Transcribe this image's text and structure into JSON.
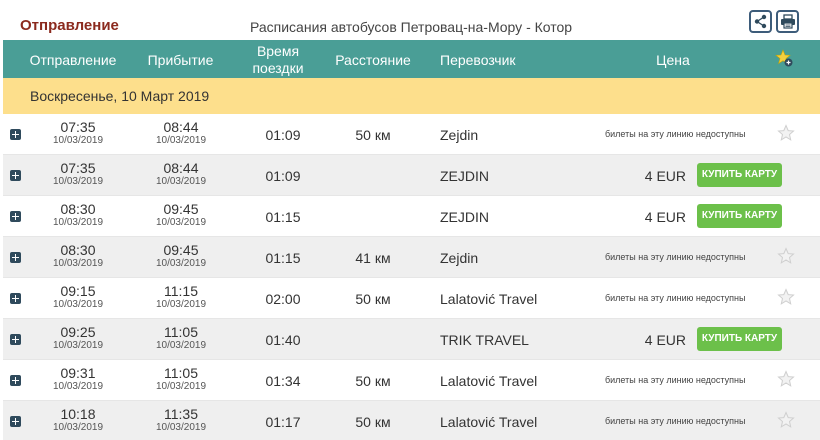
{
  "header": {
    "section_title": "Отправление",
    "route_title": "Расписания автобусов Петровац-на-Мору - Котор",
    "share_icon": "share-icon",
    "print_icon": "print-icon"
  },
  "table": {
    "columns": {
      "departure": "Отправление",
      "arrival": "Прибытие",
      "duration_line1": "Время",
      "duration_line2": "поездки",
      "distance": "Расстояние",
      "carrier": "Перевозчик",
      "price": "Цена",
      "favorite_icon": "star-add-icon"
    },
    "day_label": "Воскресенье, 10 Март 2019",
    "rows": [
      {
        "dep": "07:35",
        "dep_date": "10/03/2019",
        "arr": "08:44",
        "arr_date": "10/03/2019",
        "duration": "01:09",
        "distance": "50 км",
        "carrier": "Zejdin",
        "price": "",
        "status": "билеты на эту линию недоступны",
        "buy": ""
      },
      {
        "dep": "07:35",
        "dep_date": "10/03/2019",
        "arr": "08:44",
        "arr_date": "10/03/2019",
        "duration": "01:09",
        "distance": "",
        "carrier": "ZEJDIN",
        "price": "4 EUR",
        "status": "",
        "buy": "КУПИТЬ КАРТУ"
      },
      {
        "dep": "08:30",
        "dep_date": "10/03/2019",
        "arr": "09:45",
        "arr_date": "10/03/2019",
        "duration": "01:15",
        "distance": "",
        "carrier": "ZEJDIN",
        "price": "4 EUR",
        "status": "",
        "buy": "КУПИТЬ КАРТУ"
      },
      {
        "dep": "08:30",
        "dep_date": "10/03/2019",
        "arr": "09:45",
        "arr_date": "10/03/2019",
        "duration": "01:15",
        "distance": "41 км",
        "carrier": "Zejdin",
        "price": "",
        "status": "билеты на эту линию недоступны",
        "buy": ""
      },
      {
        "dep": "09:15",
        "dep_date": "10/03/2019",
        "arr": "11:15",
        "arr_date": "10/03/2019",
        "duration": "02:00",
        "distance": "50 км",
        "carrier": "Lalatović Travel",
        "price": "",
        "status": "билеты на эту линию недоступны",
        "buy": ""
      },
      {
        "dep": "09:25",
        "dep_date": "10/03/2019",
        "arr": "11:05",
        "arr_date": "10/03/2019",
        "duration": "01:40",
        "distance": "",
        "carrier": "TRIK TRAVEL",
        "price": "4 EUR",
        "status": "",
        "buy": "КУПИТЬ КАРТУ"
      },
      {
        "dep": "09:31",
        "dep_date": "10/03/2019",
        "arr": "11:05",
        "arr_date": "10/03/2019",
        "duration": "01:34",
        "distance": "50 км",
        "carrier": "Lalatović Travel",
        "price": "",
        "status": "билеты на эту линию недоступны",
        "buy": ""
      },
      {
        "dep": "10:18",
        "dep_date": "10/03/2019",
        "arr": "11:35",
        "arr_date": "10/03/2019",
        "duration": "01:17",
        "distance": "50 км",
        "carrier": "Lalatović Travel",
        "price": "",
        "status": "билеты на эту линию недоступны",
        "buy": ""
      }
    ]
  },
  "colors": {
    "header_bg": "#4a9e96",
    "day_bg": "#fddf8c",
    "buy_button": "#6cc04a",
    "section_title": "#8b2a1e"
  }
}
